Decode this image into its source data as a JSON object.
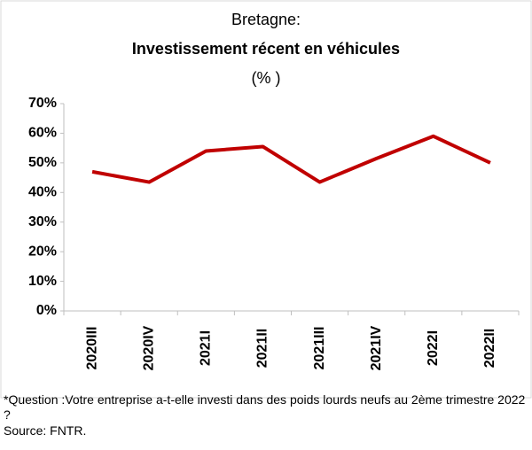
{
  "chart_data": {
    "type": "line",
    "title": "Bretagne:",
    "subtitle": "Investissement récent en véhicules",
    "unit_label": "(% )",
    "categories": [
      "2020III",
      "2020IV",
      "2021I",
      "2021II",
      "2021III",
      "2021IV",
      "2022I",
      "2022II"
    ],
    "series": [
      {
        "name": "Bretagne",
        "color": "#c00000",
        "values": [
          47,
          43.5,
          54,
          55.5,
          43.5,
          51.5,
          59,
          50
        ]
      }
    ],
    "ylim": [
      0,
      70
    ],
    "yticks": [
      {
        "value": 0,
        "label": "0%"
      },
      {
        "value": 10,
        "label": "10%"
      },
      {
        "value": 20,
        "label": "20%"
      },
      {
        "value": 30,
        "label": "30%"
      },
      {
        "value": 40,
        "label": "40%"
      },
      {
        "value": 50,
        "label": "50%"
      },
      {
        "value": 60,
        "label": "60%"
      },
      {
        "value": 70,
        "label": "70%"
      }
    ],
    "grid": false,
    "notes": [
      "*Question :Votre entreprise a-t-elle investi dans des poids lourds neufs au 2ème trimestre 2022 ?",
      "Source: FNTR."
    ]
  }
}
